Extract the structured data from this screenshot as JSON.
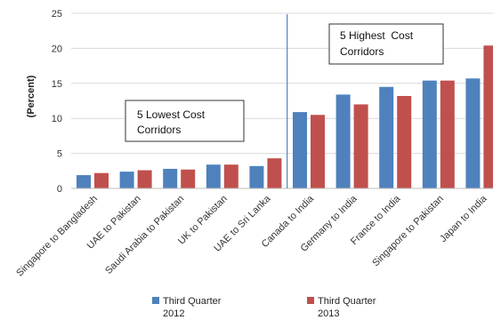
{
  "chart_data": {
    "type": "bar",
    "ylabel": "(Percent)",
    "ylim": [
      0,
      25
    ],
    "yticks": [
      0,
      5,
      10,
      15,
      20,
      25
    ],
    "categories": [
      "Singapore to Bangladesh",
      "UAE to Pakistan",
      "Saudi Arabia to Pakistan",
      "UK to Pakistan",
      "UAE to Sri Lanka",
      "Canada to India",
      "Germany to India",
      "France to India",
      "Singapore to Pakistan",
      "Japan to India"
    ],
    "series": [
      {
        "name": "Third Quarter 2012",
        "legend_lines": [
          "Third Quarter",
          "2012"
        ],
        "color": "#4F81BD",
        "values": [
          1.9,
          2.4,
          2.8,
          3.4,
          3.2,
          10.9,
          13.4,
          14.5,
          15.4,
          15.7
        ]
      },
      {
        "name": "Third Quarter 2013",
        "legend_lines": [
          "Third Quarter",
          "2013"
        ],
        "color": "#C0504D",
        "values": [
          2.2,
          2.6,
          2.7,
          3.4,
          4.3,
          10.5,
          12.0,
          13.2,
          15.4,
          20.4
        ]
      }
    ],
    "annotations": [
      {
        "lines": [
          "5 Lowest Cost",
          "Corridors"
        ]
      },
      {
        "lines": [
          "5 Highest  Cost",
          "Corridors"
        ]
      }
    ],
    "divider_color": "#4F81BD",
    "grid": true,
    "legend_position": "bottom"
  }
}
